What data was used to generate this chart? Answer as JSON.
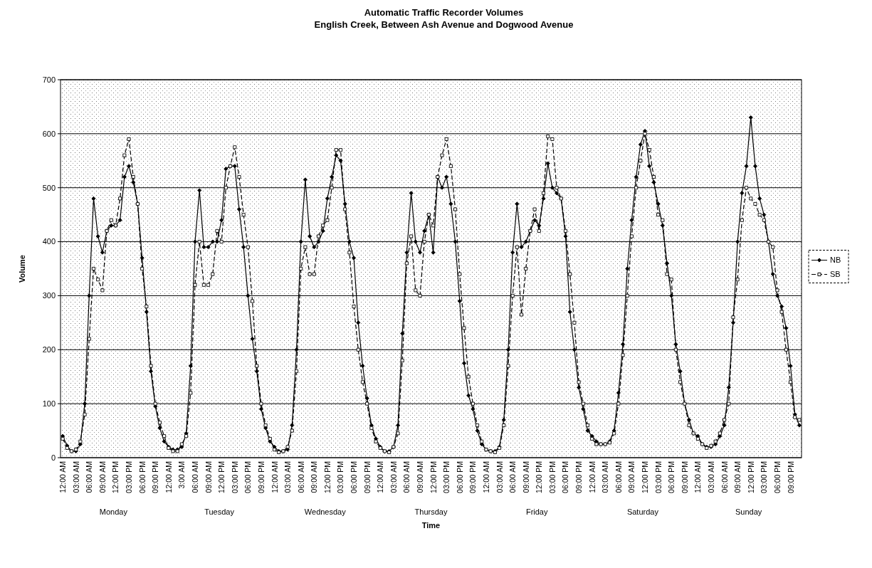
{
  "chart_data": {
    "type": "line",
    "title": "Automatic Traffic Recorder Volumes",
    "subtitle": "English Creek, Between Ash Avenue and Dogwood Avenue",
    "xlabel": "Time",
    "ylabel": "Volume",
    "categories": [
      "12:00 AM",
      null,
      null,
      "03:00 AM",
      null,
      null,
      "06:00 AM",
      null,
      null,
      "09:00 AM",
      null,
      null,
      "12:00 PM",
      null,
      null,
      "03:00 PM",
      null,
      null,
      "06:00 PM",
      null,
      null,
      "09:00 PM",
      null,
      null,
      "12:00 AM",
      null,
      null,
      "3:00 AM",
      null,
      null,
      "06:00 AM",
      null,
      null,
      "09:00 AM",
      null,
      null,
      "12:00 PM",
      null,
      null,
      "03:00 PM",
      null,
      null,
      "06:00 PM",
      null,
      null,
      "09:00 PM",
      null,
      null,
      "12:00 AM",
      null,
      null,
      "03:00 AM",
      null,
      null,
      "06:00 AM",
      null,
      null,
      "09:00 AM",
      null,
      null,
      "12:00 PM",
      null,
      null,
      "03:00 PM",
      null,
      null,
      "06:00 PM",
      null,
      null,
      "09:00 PM",
      null,
      null,
      "12:00 AM",
      null,
      null,
      "03:00 AM",
      null,
      null,
      "06:00 AM",
      null,
      null,
      "09:00 AM",
      null,
      null,
      "12:00 PM",
      null,
      null,
      "03:00 PM",
      null,
      null,
      "06:00 PM",
      null,
      null,
      "09:00 PM",
      null,
      null,
      "12:00 AM",
      null,
      null,
      "03:00 AM",
      null,
      null,
      "06:00 AM",
      null,
      null,
      "09:00 AM",
      null,
      null,
      "12:00 PM",
      null,
      null,
      "03:00 PM",
      null,
      null,
      "06:00 PM",
      null,
      null,
      "09:00 PM",
      null,
      null,
      "12:00 AM",
      null,
      null,
      "03:00 AM",
      null,
      null,
      "06:00 AM",
      null,
      null,
      "09:00 AM",
      null,
      null,
      "12:00 PM",
      null,
      null,
      "03:00 PM",
      null,
      null,
      "06:00 PM",
      null,
      null,
      "09:00 PM",
      null,
      null,
      "12:00 AM",
      null,
      null,
      "03:00 AM",
      null,
      null,
      "06:00 AM",
      null,
      null,
      "09:00 AM",
      null,
      null,
      "12:00 PM",
      null,
      null,
      "03:00 PM",
      null,
      null,
      "06:00 PM",
      null,
      null,
      "09:00 PM",
      null,
      null
    ],
    "series": [
      {
        "name": "NB",
        "color": "#000000",
        "marker": "diamond",
        "line_style": "solid",
        "values": [
          40,
          22,
          12,
          12,
          25,
          100,
          300,
          480,
          410,
          380,
          420,
          430,
          430,
          440,
          520,
          540,
          510,
          470,
          370,
          270,
          160,
          95,
          55,
          30,
          20,
          15,
          15,
          20,
          45,
          170,
          400,
          495,
          390,
          390,
          400,
          400,
          440,
          535,
          540,
          540,
          460,
          390,
          300,
          220,
          160,
          90,
          55,
          30,
          20,
          12,
          12,
          15,
          60,
          200,
          400,
          515,
          410,
          390,
          400,
          420,
          480,
          520,
          560,
          550,
          470,
          400,
          370,
          250,
          170,
          110,
          60,
          35,
          20,
          12,
          12,
          20,
          60,
          230,
          380,
          490,
          400,
          380,
          420,
          450,
          380,
          520,
          500,
          520,
          470,
          400,
          290,
          175,
          115,
          90,
          50,
          25,
          15,
          12,
          12,
          20,
          70,
          200,
          380,
          470,
          390,
          400,
          420,
          440,
          430,
          480,
          545,
          500,
          490,
          480,
          410,
          270,
          200,
          130,
          90,
          50,
          40,
          30,
          25,
          25,
          30,
          50,
          120,
          210,
          350,
          440,
          520,
          580,
          605,
          540,
          510,
          470,
          430,
          360,
          300,
          210,
          160,
          100,
          70,
          45,
          40,
          25,
          20,
          20,
          25,
          40,
          60,
          130,
          250,
          400,
          490,
          540,
          630,
          540,
          480,
          450,
          400,
          340,
          300,
          280,
          240,
          170,
          80,
          60
        ]
      },
      {
        "name": "SB",
        "color": "#000000",
        "marker": "square",
        "line_style": "dashed",
        "values": [
          35,
          18,
          12,
          15,
          30,
          80,
          220,
          350,
          330,
          310,
          420,
          440,
          430,
          480,
          560,
          590,
          520,
          470,
          350,
          280,
          170,
          100,
          65,
          40,
          18,
          12,
          12,
          25,
          40,
          120,
          320,
          400,
          320,
          320,
          340,
          420,
          400,
          500,
          540,
          575,
          520,
          450,
          390,
          290,
          170,
          100,
          60,
          35,
          15,
          10,
          12,
          20,
          50,
          160,
          350,
          390,
          340,
          340,
          410,
          430,
          440,
          500,
          570,
          570,
          460,
          380,
          280,
          200,
          140,
          100,
          55,
          30,
          18,
          12,
          10,
          20,
          45,
          180,
          360,
          410,
          310,
          300,
          400,
          450,
          430,
          520,
          560,
          590,
          540,
          460,
          340,
          240,
          150,
          100,
          60,
          30,
          15,
          12,
          10,
          18,
          60,
          170,
          300,
          390,
          265,
          350,
          420,
          460,
          420,
          490,
          595,
          590,
          500,
          480,
          420,
          340,
          250,
          140,
          100,
          60,
          35,
          25,
          25,
          25,
          28,
          45,
          100,
          190,
          300,
          410,
          500,
          550,
          600,
          570,
          520,
          450,
          440,
          340,
          330,
          200,
          140,
          100,
          60,
          45,
          35,
          25,
          18,
          22,
          30,
          45,
          70,
          100,
          260,
          330,
          440,
          500,
          480,
          470,
          450,
          440,
          400,
          390,
          310,
          270,
          200,
          140,
          75,
          70
        ]
      }
    ],
    "ylim": [
      0,
      700
    ],
    "yticks": [
      0,
      100,
      200,
      300,
      400,
      500,
      600,
      700
    ],
    "grid": "y",
    "legend": "right",
    "annotations": [
      "Monday",
      "Tuesday",
      "Wednesday",
      "Thursday",
      "Friday",
      "Saturday",
      "Sunday"
    ]
  }
}
